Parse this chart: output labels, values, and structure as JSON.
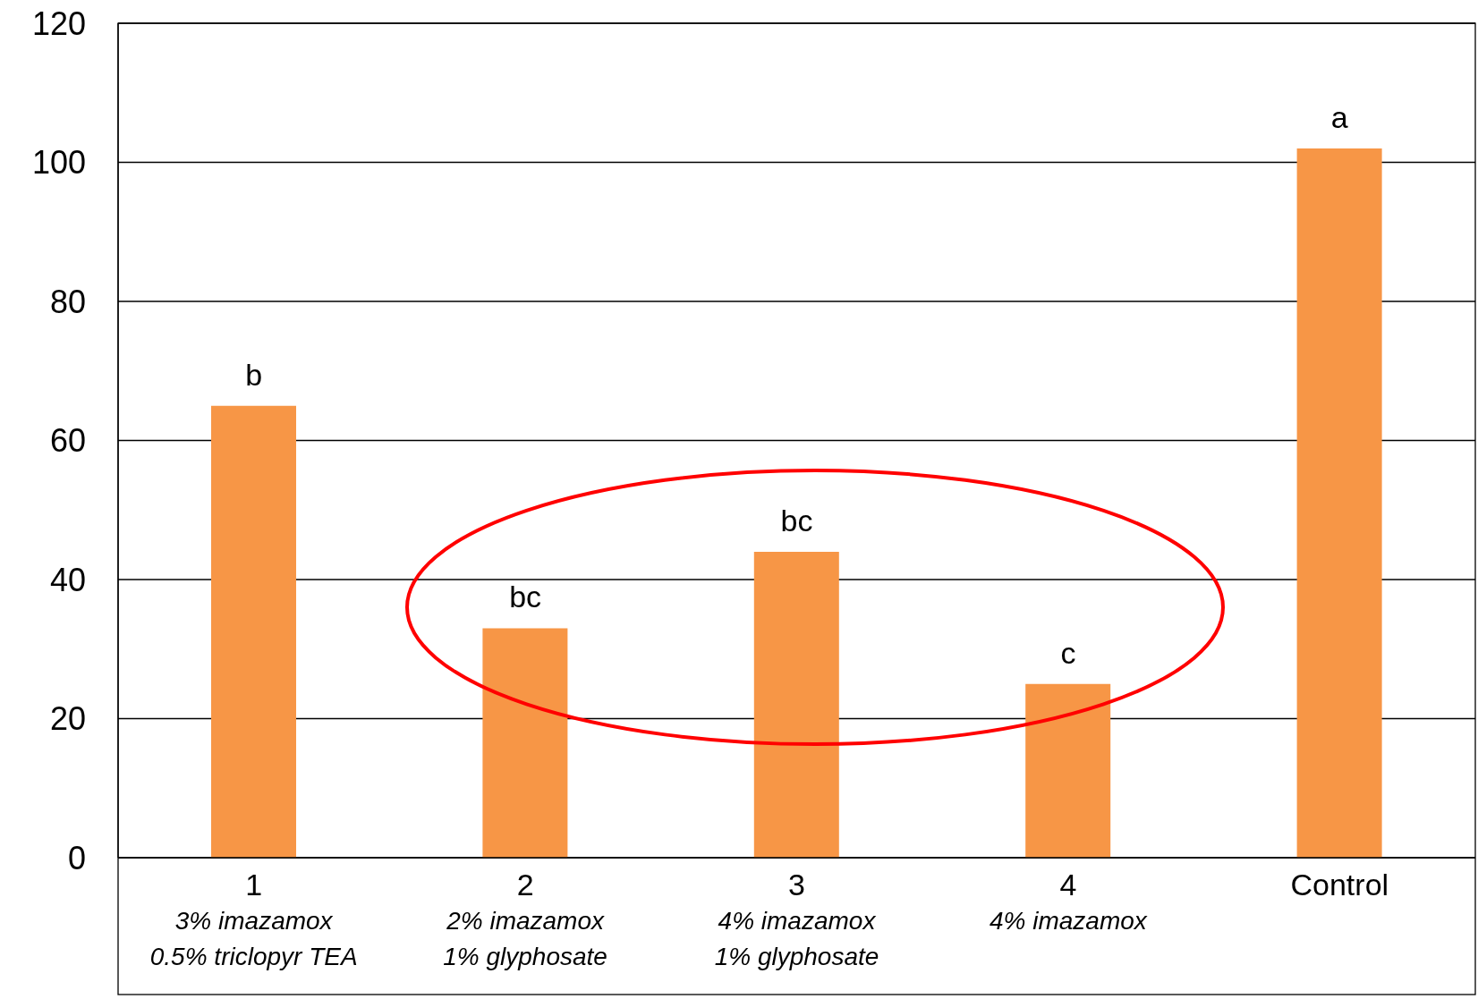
{
  "chart_data": {
    "type": "bar",
    "categories": [
      "1",
      "2",
      "3",
      "4",
      "Control"
    ],
    "values": [
      65,
      33,
      44,
      25,
      102
    ],
    "color": "#f79646",
    "ylim": [
      0,
      120
    ],
    "yticks": [
      0,
      20,
      40,
      60,
      80,
      100,
      120
    ],
    "grid": "y",
    "annotations": [
      {
        "text": "b",
        "x": "1",
        "y": 65
      },
      {
        "text": "bc",
        "x": "2",
        "y": 33
      },
      {
        "text": "bc",
        "x": "3",
        "y": 44
      },
      {
        "text": "c",
        "x": "4",
        "y": 25
      },
      {
        "text": "a",
        "x": "Control",
        "y": 102
      },
      "3% imazamox\n0.5% triclopyr TEA",
      "2% imazamox\n1% glyphosate",
      "4% imazamox\n1% glyphosate",
      "4% imazamox"
    ]
  }
}
